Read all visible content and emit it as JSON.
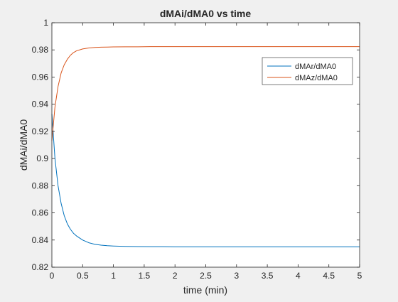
{
  "chart_data": {
    "type": "line",
    "title": "dMAi/dMA0 vs time",
    "xlabel": "time (min)",
    "ylabel": "dMAi/dMA0",
    "xlim": [
      0,
      5
    ],
    "ylim": [
      0.82,
      1
    ],
    "xticks": [
      0,
      0.5,
      1,
      1.5,
      2,
      2.5,
      3,
      3.5,
      4,
      4.5,
      5
    ],
    "xtick_labels": [
      "0",
      "0.5",
      "1",
      "1.5",
      "2",
      "2.5",
      "3",
      "3.5",
      "4",
      "4.5",
      "5"
    ],
    "yticks": [
      0.82,
      0.84,
      0.86,
      0.88,
      0.9,
      0.92,
      0.94,
      0.96,
      0.98,
      1
    ],
    "ytick_labels": [
      "0.82",
      "0.84",
      "0.86",
      "0.88",
      "0.9",
      "0.92",
      "0.94",
      "0.96",
      "0.98",
      "1"
    ],
    "grid": false,
    "legend": {
      "placement": "top-right"
    },
    "x": [
      0,
      0.05,
      0.1,
      0.15,
      0.2,
      0.25,
      0.3,
      0.35,
      0.4,
      0.5,
      0.6,
      0.7,
      0.8,
      0.9,
      1.0,
      1.2,
      1.4,
      1.6,
      1.8,
      2.0,
      2.5,
      3.0,
      3.5,
      4.0,
      4.5,
      5.0
    ],
    "series": [
      {
        "name": "dMAr/dMA0",
        "color": "#0072bd",
        "values": [
          0.933,
          0.9,
          0.88,
          0.867,
          0.858,
          0.852,
          0.848,
          0.845,
          0.843,
          0.84,
          0.838,
          0.8368,
          0.8362,
          0.8358,
          0.8356,
          0.8353,
          0.8352,
          0.8351,
          0.8351,
          0.835,
          0.835,
          0.835,
          0.835,
          0.835,
          0.835,
          0.835
        ]
      },
      {
        "name": "dMAz/dMA0",
        "color": "#d95319",
        "values": [
          0.913,
          0.938,
          0.953,
          0.963,
          0.969,
          0.973,
          0.976,
          0.978,
          0.9793,
          0.9807,
          0.9814,
          0.9818,
          0.982,
          0.9821,
          0.9822,
          0.9823,
          0.9823,
          0.9824,
          0.9824,
          0.9824,
          0.9824,
          0.9824,
          0.9824,
          0.9824,
          0.9824,
          0.9824
        ]
      }
    ]
  }
}
